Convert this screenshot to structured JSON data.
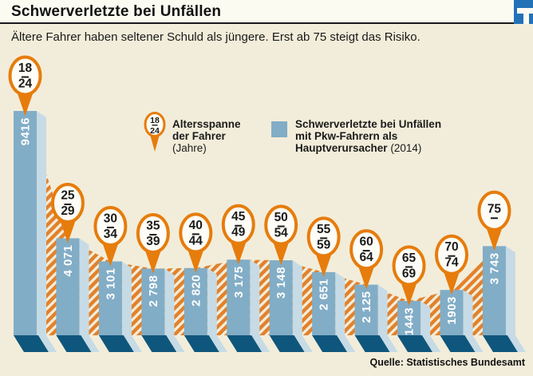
{
  "header": {
    "title": "Schwerverletzte bei Unfällen"
  },
  "subtitle": "Ältere Fahrer haben seltener Schuld als jüngere. Erst ab 75 steigt das Risiko.",
  "legend": {
    "pin": {
      "from": "18",
      "to": "24"
    },
    "pin_label_line1": "Altersspanne",
    "pin_label_line2": "der Fahrer",
    "pin_label_line3": "(Jahre)",
    "bar_label_line1": "Schwerverletzte bei Unfällen",
    "bar_label_line2": "mit Pkw-Fahrern als",
    "bar_label_line3_bold": "Hauptverursacher",
    "bar_label_line3_normal": "(2014)"
  },
  "source": "Quelle: Statistisches Bundesamt",
  "colors": {
    "background": "#f2edda",
    "header_bg": "#fcfbf2",
    "logo_blue": "#2272b8",
    "bar_face": "#82adc6",
    "bar_side": "#c6dbe5",
    "bar_base": "#0f567c",
    "hatch": "#e2812c",
    "pin": "#e67c0c",
    "pin_fill": "#fdfcf6",
    "value_text": "#ffffff"
  },
  "chart_data": {
    "type": "bar",
    "title": "Schwerverletzte bei Unfällen",
    "subtitle": "Ältere Fahrer haben seltener Schuld als jüngere. Erst ab 75 steigt das Risiko.",
    "categories": [
      "18–24",
      "25–29",
      "30–34",
      "35–39",
      "40–44",
      "45–49",
      "50–54",
      "55–59",
      "60–64",
      "65–69",
      "70–74",
      "75+"
    ],
    "values": [
      9416,
      4071,
      3101,
      2798,
      2820,
      3175,
      3148,
      2651,
      2125,
      1443,
      1903,
      3743
    ],
    "value_labels": [
      "9416",
      "4 071",
      "3 101",
      "2 798",
      "2 820",
      "3 175",
      "3 148",
      "2 651",
      "2 125",
      "1443",
      "1903",
      "3 743"
    ],
    "pins": [
      {
        "from": "18",
        "to": "24"
      },
      {
        "from": "25",
        "to": "29"
      },
      {
        "from": "30",
        "to": "34"
      },
      {
        "from": "35",
        "to": "39"
      },
      {
        "from": "40",
        "to": "44"
      },
      {
        "from": "45",
        "to": "49"
      },
      {
        "from": "50",
        "to": "54"
      },
      {
        "from": "55",
        "to": "59"
      },
      {
        "from": "60",
        "to": "64"
      },
      {
        "from": "65",
        "to": "69"
      },
      {
        "from": "70",
        "to": "74"
      },
      {
        "from": "75",
        "to": ""
      }
    ],
    "xlabel": "Altersspanne der Fahrer (Jahre)",
    "ylabel": "Schwerverletzte bei Unfällen mit Pkw-Fahrern als Hauptverursacher (2014)",
    "ylim": [
      0,
      9416
    ],
    "grid": false,
    "legend_position": "top",
    "source": "Quelle: Statistisches Bundesamt"
  }
}
